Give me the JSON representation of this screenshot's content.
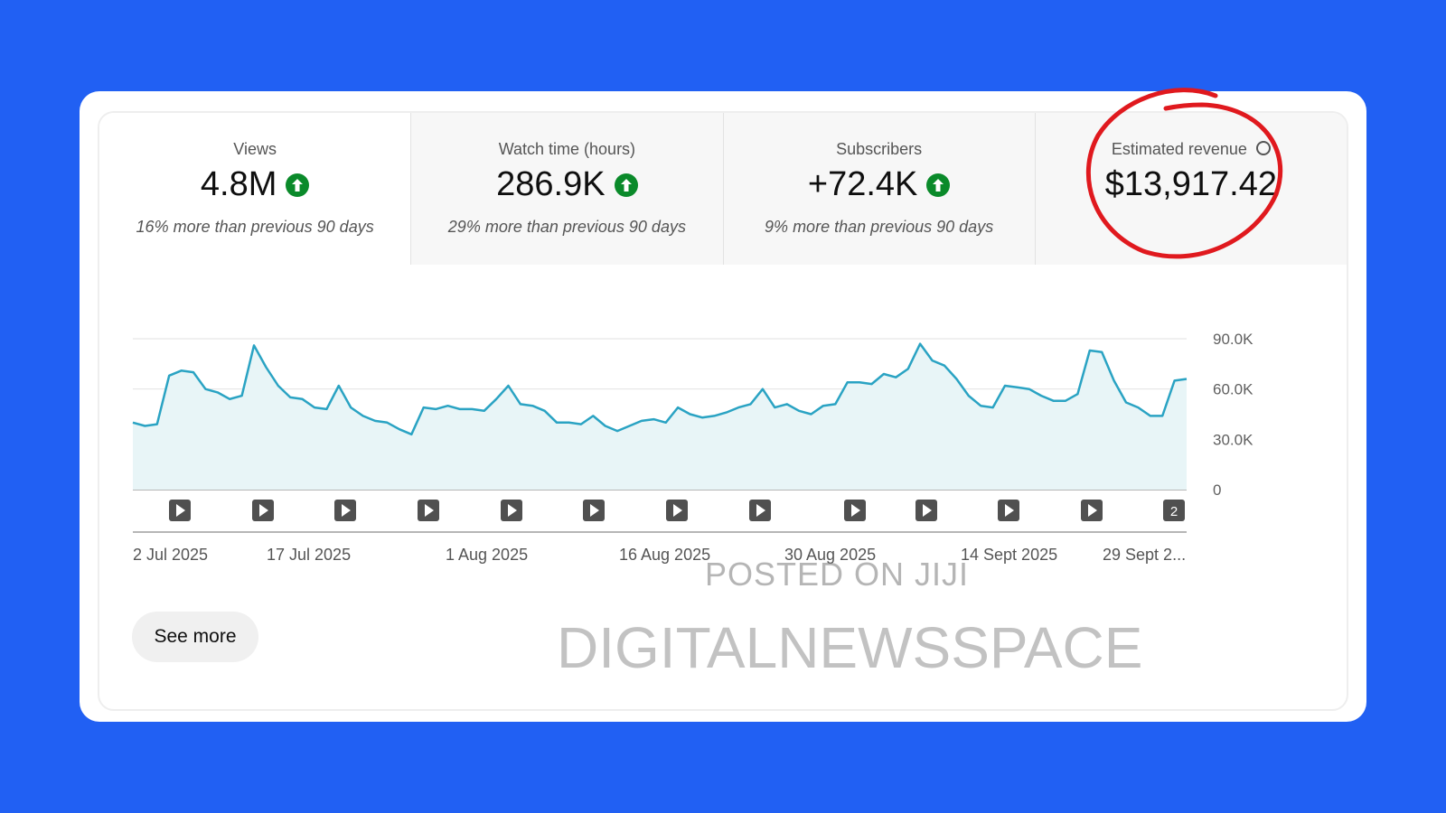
{
  "metrics": [
    {
      "label": "Views",
      "value": "4.8M",
      "note": "16% more than previous 90 days",
      "trend": "up"
    },
    {
      "label": "Watch time (hours)",
      "value": "286.9K",
      "note": "29% more than previous 90 days",
      "trend": "up"
    },
    {
      "label": "Subscribers",
      "value": "+72.4K",
      "note": "9% more than previous 90 days",
      "trend": "up"
    },
    {
      "label": "Estimated revenue",
      "value": "$13,917.42",
      "note": "",
      "trend": "none"
    }
  ],
  "colors": {
    "background": "#2160f3",
    "line": "#2aa3c3",
    "area": "#e8f5f7",
    "trend_up": "#0a8a2a",
    "annotation": "#e0191e"
  },
  "icons": {
    "trend": "arrow-up-icon",
    "info": "info-icon",
    "video": "play-icon"
  },
  "chart_data": {
    "type": "area",
    "x_tick_labels": [
      "2 Jul 2025",
      "17 Jul 2025",
      "1 Aug 2025",
      "16 Aug 2025",
      "30 Aug 2025",
      "14 Sept 2025",
      "29 Sept 2..."
    ],
    "y_tick_labels": [
      "0",
      "30.0K",
      "60.0K",
      "90.0K"
    ],
    "ylim": [
      0,
      90000
    ],
    "values": [
      40000,
      38000,
      39000,
      68000,
      71000,
      70000,
      60000,
      58000,
      54000,
      56000,
      86000,
      73000,
      62000,
      55000,
      54000,
      49000,
      48000,
      62000,
      49000,
      44000,
      41000,
      40000,
      36000,
      33000,
      49000,
      48000,
      50000,
      48000,
      48000,
      47000,
      54000,
      62000,
      51000,
      50000,
      47000,
      40000,
      40000,
      39000,
      44000,
      38000,
      35000,
      38000,
      41000,
      42000,
      40000,
      49000,
      45000,
      43000,
      44000,
      46000,
      49000,
      51000,
      60000,
      49000,
      51000,
      47000,
      45000,
      50000,
      51000,
      64000,
      64000,
      63000,
      69000,
      67000,
      72000,
      87000,
      77000,
      74000,
      66000,
      56000,
      50000,
      49000,
      62000,
      61000,
      60000,
      56000,
      53000,
      53000,
      57000,
      83000,
      82000,
      65000,
      52000,
      49000,
      44000,
      44000,
      65000,
      66000
    ],
    "video_markers": [
      "",
      "",
      "",
      "",
      "",
      "",
      "",
      "",
      "",
      "",
      "",
      "",
      "2"
    ],
    "grid": true
  },
  "see_more_label": "See more",
  "watermarks": [
    "POSTED ON JIJI",
    "DIGITALNEWSSPACE"
  ]
}
